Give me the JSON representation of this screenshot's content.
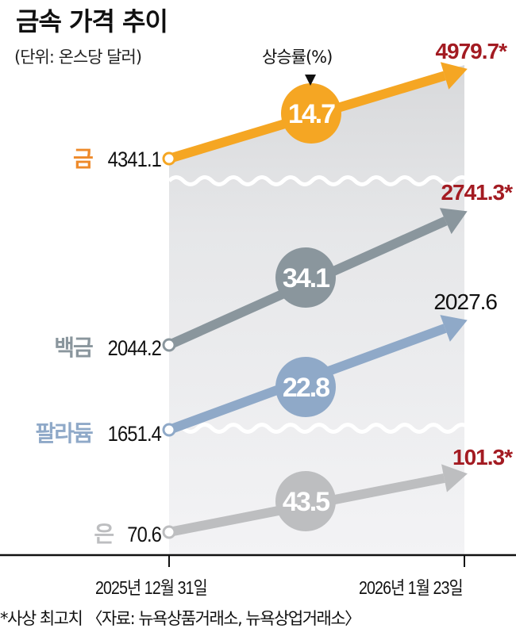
{
  "header": {
    "title": "금속 가격 추이",
    "unit": "(단위: 온스당 달러)",
    "rate_label": "상승률(%)"
  },
  "footer": {
    "note": "*사상 최고치  〈자료: 뉴욕상품거래소, 뉴욕상업거래소〉"
  },
  "colors": {
    "gold": "#F5A623",
    "gold_label": "#EE8A2A",
    "platinum": "#8A969D",
    "palladium": "#8FA9C8",
    "silver": "#BDBEC0",
    "record_high": "#A31B22",
    "panel_bg": "#EBECEE",
    "axis": "#111111"
  },
  "chart_data": {
    "type": "line",
    "title": "금속 가격 추이",
    "subtitle": "(단위: 온스당 달러)",
    "xlabel": "",
    "ylabel": "온스당 달러",
    "x": [
      "2025년 12월 31일",
      "2026년 1월 23일"
    ],
    "series": [
      {
        "name": "금",
        "values": [
          4341.1,
          4979.7
        ],
        "change_pct": 14.7,
        "record_high": true
      },
      {
        "name": "백금",
        "values": [
          2044.2,
          2741.3
        ],
        "change_pct": 34.1,
        "record_high": true
      },
      {
        "name": "팔라듐",
        "values": [
          1651.4,
          2027.6
        ],
        "change_pct": 22.8,
        "record_high": false
      },
      {
        "name": "은",
        "values": [
          70.6,
          101.3
        ],
        "change_pct": 43.5,
        "record_high": true
      }
    ],
    "annotations": [
      "상승률(%)",
      "*사상 최고치"
    ],
    "axis_breaks": 3,
    "grid": false,
    "legend": "inline-left"
  }
}
